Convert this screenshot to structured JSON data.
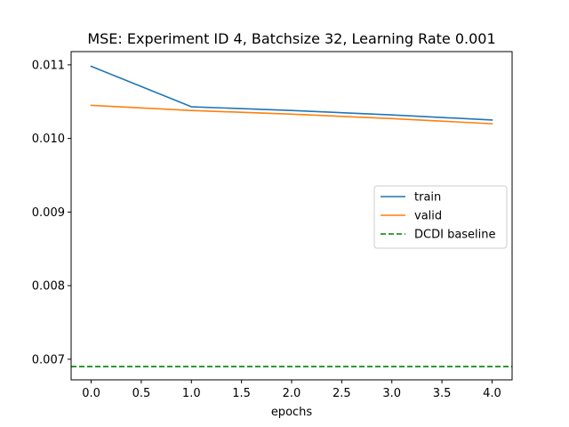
{
  "chart_data": {
    "type": "line",
    "title": "MSE: Experiment ID 4, Batchsize 32, Learning Rate 0.001",
    "xlabel": "epochs",
    "ylabel": "",
    "xlim": [
      -0.2,
      4.2
    ],
    "ylim": [
      0.00672,
      0.01118
    ],
    "xticks": [
      0.0,
      0.5,
      1.0,
      1.5,
      2.0,
      2.5,
      3.0,
      3.5,
      4.0
    ],
    "xtick_labels": [
      "0.0",
      "0.5",
      "1.0",
      "1.5",
      "2.0",
      "2.5",
      "3.0",
      "3.5",
      "4.0"
    ],
    "yticks": [
      0.007,
      0.008,
      0.009,
      0.01,
      0.011
    ],
    "ytick_labels": [
      "0.007",
      "0.008",
      "0.009",
      "0.010",
      "0.011"
    ],
    "grid": false,
    "legend_position": "center-right",
    "series": [
      {
        "name": "train",
        "color": "#1f77b4",
        "style": "solid",
        "x": [
          0,
          1,
          2,
          3,
          4
        ],
        "y": [
          0.01098,
          0.01043,
          0.01038,
          0.01032,
          0.01025
        ]
      },
      {
        "name": "valid",
        "color": "#ff7f0e",
        "style": "solid",
        "x": [
          0,
          1,
          2,
          3,
          4
        ],
        "y": [
          0.01045,
          0.01038,
          0.01033,
          0.01027,
          0.0102
        ]
      },
      {
        "name": "DCDI baseline",
        "color": "#008000",
        "style": "dashed",
        "hline": 0.0069
      }
    ]
  }
}
